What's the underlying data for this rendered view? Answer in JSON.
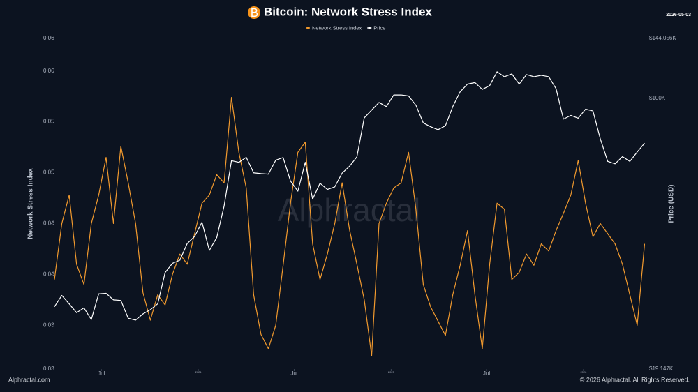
{
  "chart_data": {
    "type": "line",
    "title": "Bitcoin: Network Stress Index",
    "date": "2026-05-03",
    "watermark": "Alphractal",
    "footer_left": "Alphractal.com",
    "footer_right": "© 2026 Alphractal. All Rights Reserved.",
    "ylabel": "Network Stress Index",
    "y2label": "Price (USD)",
    "legend": "top",
    "grid": false,
    "y2log": true,
    "x": [
      "2023-04-03",
      "2023-04-17",
      "2023-05-01",
      "2023-05-15",
      "2023-05-29",
      "2023-06-12",
      "2023-06-26",
      "2023-07-10",
      "2023-07-24",
      "2023-08-07",
      "2023-08-21",
      "2023-09-04",
      "2023-09-18",
      "2023-10-02",
      "2023-10-16",
      "2023-10-30",
      "2023-11-13",
      "2023-11-27",
      "2023-12-11",
      "2023-12-25",
      "2024-01-08",
      "2024-01-22",
      "2024-02-05",
      "2024-02-19",
      "2024-03-04",
      "2024-03-18",
      "2024-04-01",
      "2024-04-15",
      "2024-04-29",
      "2024-05-13",
      "2024-05-27",
      "2024-06-10",
      "2024-06-24",
      "2024-07-08",
      "2024-07-22",
      "2024-08-05",
      "2024-08-19",
      "2024-09-02",
      "2024-09-16",
      "2024-09-30",
      "2024-10-14",
      "2024-10-28",
      "2024-11-11",
      "2024-11-25",
      "2024-12-09",
      "2024-12-23",
      "2025-01-06",
      "2025-01-20",
      "2025-02-03",
      "2025-02-17",
      "2025-03-03",
      "2025-03-17",
      "2025-03-31",
      "2025-04-14",
      "2025-04-28",
      "2025-05-12",
      "2025-05-26",
      "2025-06-09",
      "2025-06-23",
      "2025-07-07",
      "2025-07-21",
      "2025-08-04",
      "2025-08-18",
      "2025-09-01",
      "2025-09-15",
      "2025-09-29",
      "2025-10-13",
      "2025-10-27",
      "2025-11-10",
      "2025-11-24",
      "2025-12-08",
      "2025-12-22",
      "2026-01-05",
      "2026-01-19",
      "2026-02-02",
      "2026-02-16",
      "2026-03-02",
      "2026-03-16",
      "2026-03-30",
      "2026-04-13",
      "2026-04-27"
    ],
    "series": [
      {
        "name": "Network Stress Index",
        "color": "#f29a2e",
        "values": [
          0.0345,
          0.04,
          0.0428,
          0.036,
          0.034,
          0.04,
          0.0428,
          0.0465,
          0.04,
          0.0476,
          0.044,
          0.04,
          0.0332,
          0.0305,
          0.033,
          0.032,
          0.035,
          0.037,
          0.036,
          0.039,
          0.042,
          0.0428,
          0.0448,
          0.044,
          0.0524,
          0.047,
          0.0435,
          0.033,
          0.0291,
          0.0277,
          0.03,
          0.0359,
          0.042,
          0.047,
          0.048,
          0.038,
          0.0345,
          0.037,
          0.04,
          0.044,
          0.0394,
          0.036,
          0.0325,
          0.027,
          0.04,
          0.042,
          0.0435,
          0.044,
          0.047,
          0.0414,
          0.034,
          0.0318,
          0.0304,
          0.029,
          0.033,
          0.0359,
          0.0393,
          0.033,
          0.0277,
          0.036,
          0.042,
          0.0414,
          0.0345,
          0.0352,
          0.037,
          0.0359,
          0.038,
          0.0373,
          0.0393,
          0.041,
          0.0428,
          0.0462,
          0.042,
          0.0387,
          0.04,
          0.039,
          0.038,
          0.036,
          0.033,
          0.03,
          0.038
        ]
      },
      {
        "name": "Price",
        "color": "#ffffff",
        "axis": "y2",
        "values": [
          28000,
          30000,
          28500,
          27000,
          27800,
          25900,
          30300,
          30400,
          29200,
          29100,
          26100,
          25800,
          26800,
          27500,
          28500,
          34500,
          36500,
          37200,
          41200,
          43000,
          46900,
          39500,
          42700,
          51800,
          68300,
          67600,
          69700,
          63400,
          63100,
          62900,
          68500,
          69600,
          60300,
          56700,
          67600,
          54000,
          59500,
          57300,
          58200,
          63300,
          66000,
          69900,
          88700,
          93000,
          97400,
          95000,
          102000,
          102000,
          101400,
          95800,
          86000,
          84000,
          82500,
          84500,
          95000,
          104000,
          109000,
          110000,
          105500,
          108000,
          117500,
          114000,
          116000,
          109000,
          115500,
          114000,
          115000,
          114000,
          106000,
          88000,
          90000,
          88500,
          93500,
          92500,
          78000,
          68000,
          67000,
          70000,
          68000,
          72000,
          76000
        ]
      }
    ],
    "xlim": [
      "2023-04-03",
      "2026-05-03"
    ],
    "xticks": [
      {
        "value": "2023-07-01",
        "label": "Jul"
      },
      {
        "value": "2024-01-01",
        "label": "2024"
      },
      {
        "value": "2024-07-01",
        "label": "Jul"
      },
      {
        "value": "2025-01-01",
        "label": "2025"
      },
      {
        "value": "2025-07-01",
        "label": "Jul"
      },
      {
        "value": "2026-01-01",
        "label": "2026"
      }
    ],
    "ylim": [
      0.0257,
      0.0582
    ],
    "yticks": [
      {
        "value": 0.0257,
        "label": "0.03"
      },
      {
        "value": 0.03,
        "label": "0.03"
      },
      {
        "value": 0.035,
        "label": "0.04"
      },
      {
        "value": 0.04,
        "label": "0.04"
      },
      {
        "value": 0.045,
        "label": "0.05"
      },
      {
        "value": 0.05,
        "label": "0.05"
      },
      {
        "value": 0.055,
        "label": "0.06"
      },
      {
        "value": 0.0582,
        "label": "0.06"
      }
    ],
    "y2lim": [
      19147,
      144056
    ],
    "y2ticks": [
      {
        "value": 19147,
        "label": "$19.147K"
      },
      {
        "value": 100000,
        "label": "$100K"
      },
      {
        "value": 144056,
        "label": "$144.056K"
      }
    ]
  }
}
